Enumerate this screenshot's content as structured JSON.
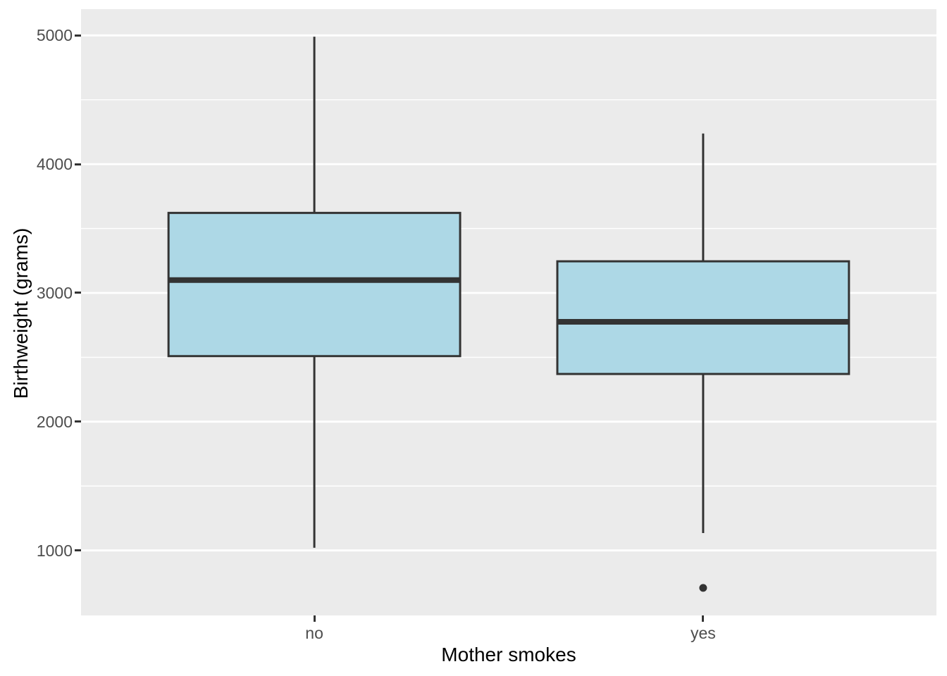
{
  "chart_data": {
    "type": "boxplot",
    "title": "",
    "xlabel": "Mother smokes",
    "ylabel": "Birthweight (grams)",
    "categories": [
      "no",
      "yes"
    ],
    "y_ticks": [
      1000,
      2000,
      3000,
      4000,
      5000
    ],
    "y_minor_ticks": [
      1500,
      2500,
      3500,
      4500
    ],
    "ylim": [
      495,
      5204
    ],
    "grid": true,
    "legend": "none",
    "boxes": [
      {
        "category": "no",
        "whisker_low": 1021,
        "q1": 2509,
        "median": 3100,
        "q3": 3621.5,
        "whisker_high": 4990,
        "outliers": []
      },
      {
        "category": "yes",
        "whisker_low": 1135,
        "q1": 2370.5,
        "median": 2775.5,
        "q3": 3245.5,
        "whisker_high": 4238,
        "outliers": [
          709
        ]
      }
    ],
    "box_width_ratio": 0.75,
    "colors": {
      "figure_background": "#FFFFFF",
      "panel_background": "#EBEBEB",
      "gridline": "#FFFFFF",
      "box_fill": "#ADD8E6",
      "box_border": "#333333",
      "median": "#333333",
      "outlier": "#333333",
      "tick_mark": "#333333",
      "tick_label": "#4D4D4D",
      "axis_title": "#000000"
    }
  }
}
